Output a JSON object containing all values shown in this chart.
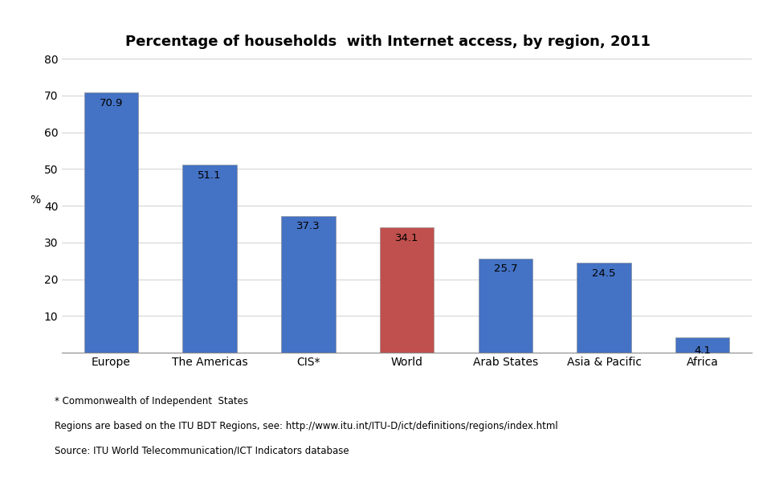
{
  "title": "Percentage of households  with Internet access, by region, 2011",
  "categories": [
    "Europe",
    "The Americas",
    "CIS*",
    "World",
    "Arab States",
    "Asia & Pacific",
    "Africa"
  ],
  "values": [
    70.9,
    51.1,
    37.3,
    34.1,
    25.7,
    24.5,
    4.1
  ],
  "bar_colors": [
    "#4472C4",
    "#4472C4",
    "#4472C4",
    "#C0504D",
    "#4472C4",
    "#4472C4",
    "#4472C4"
  ],
  "ylabel": "%",
  "ylim": [
    0,
    80
  ],
  "yticks": [
    0,
    10,
    20,
    30,
    40,
    50,
    60,
    70,
    80
  ],
  "footnote_line1": "* Commonwealth of Independent  States",
  "footnote_line2": "Regions are based on the ITU BDT Regions, see: http://www.itu.int/ITU-D/ict/definitions/regions/index.html",
  "footnote_line3": "Source: ITU World Telecommunication/ICT Indicators database",
  "title_fontsize": 13,
  "label_fontsize": 10,
  "tick_fontsize": 10,
  "footnote_fontsize": 8.5,
  "background_color": "#FFFFFF",
  "value_label_fontsize": 9.5
}
